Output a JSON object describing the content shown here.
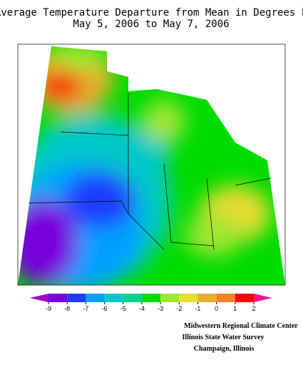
{
  "title": [
    "Average Temperature Departure from Mean in Degrees F",
    "May 5, 2006 to May 7, 2006"
  ],
  "legend": {
    "ticks": [
      -9,
      -8,
      -7,
      -6,
      -5,
      -4,
      -3,
      -2,
      -1,
      0,
      1,
      2
    ],
    "colors": [
      "#a000c8",
      "#7800dc",
      "#1e3cff",
      "#00a0ff",
      "#00c8c8",
      "#00d28c",
      "#00dc00",
      "#a0e632",
      "#e6dc32",
      "#e6af2d",
      "#f08228",
      "#fa0000",
      "#f0148c"
    ]
  },
  "credits": [
    "Midwestern Regional Climate Center",
    "Illinois State Water Survey",
    "Champaign, Illinois"
  ]
}
